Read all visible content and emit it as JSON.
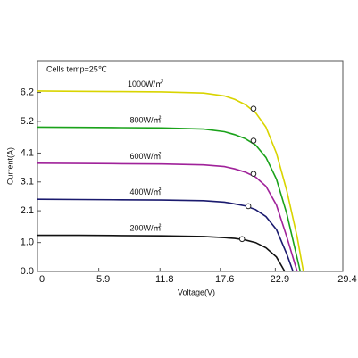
{
  "chart_data": {
    "type": "line",
    "annotation": "Cells temp=25℃",
    "x_label": "Voltage(V)",
    "y_label": "Current(A)",
    "xlim": [
      0,
      29.4
    ],
    "ylim": [
      0,
      7.3
    ],
    "xticks": [
      0,
      5.9,
      11.8,
      17.6,
      22.9,
      29.4
    ],
    "yticks": [
      {
        "value": 0,
        "label": "0.0"
      },
      {
        "value": 1,
        "label": "1.0"
      },
      2.1,
      3.1,
      4.1,
      5.2,
      6.2
    ],
    "series": [
      {
        "name": "1000W/㎡",
        "color": "#d9d400",
        "x": [
          0,
          4,
          8,
          12,
          16,
          18,
          19,
          20,
          21,
          22,
          23,
          24,
          25,
          25.6
        ],
        "values": [
          6.25,
          6.24,
          6.23,
          6.22,
          6.18,
          6.08,
          5.96,
          5.78,
          5.5,
          5.0,
          4.1,
          2.8,
          1.2,
          0
        ],
        "mpp_x": 20.8,
        "mpp": 5.64
      },
      {
        "name": "800W/㎡",
        "color": "#1aa21a",
        "x": [
          0,
          4,
          8,
          12,
          16,
          18,
          19,
          20,
          21,
          22,
          23,
          24,
          25.3
        ],
        "values": [
          5.0,
          4.99,
          4.98,
          4.97,
          4.93,
          4.84,
          4.74,
          4.6,
          4.38,
          3.95,
          3.2,
          2.0,
          0
        ],
        "mpp_x": 20.8,
        "mpp": 4.53
      },
      {
        "name": "600W/㎡",
        "color": "#a0229a",
        "x": [
          0,
          4,
          8,
          12,
          16,
          18,
          19,
          20,
          21,
          22,
          23,
          24,
          25.0
        ],
        "values": [
          3.75,
          3.74,
          3.73,
          3.72,
          3.69,
          3.63,
          3.55,
          3.44,
          3.27,
          2.95,
          2.3,
          1.2,
          0
        ],
        "mpp_x": 20.8,
        "mpp": 3.38
      },
      {
        "name": "400W/㎡",
        "color": "#1a1a6e",
        "x": [
          0,
          4,
          8,
          12,
          16,
          18,
          19,
          20,
          21,
          22,
          23,
          24,
          24.6
        ],
        "values": [
          2.5,
          2.49,
          2.48,
          2.47,
          2.45,
          2.4,
          2.34,
          2.27,
          2.14,
          1.9,
          1.45,
          0.6,
          0
        ],
        "mpp_x": 20.3,
        "mpp": 2.26
      },
      {
        "name": "200W/㎡",
        "color": "#111111",
        "x": [
          0,
          4,
          8,
          12,
          16,
          18,
          19,
          20,
          21,
          22,
          23,
          23.8
        ],
        "values": [
          1.25,
          1.25,
          1.24,
          1.23,
          1.21,
          1.17,
          1.14,
          1.09,
          1.0,
          0.82,
          0.5,
          0
        ],
        "mpp_x": 19.7,
        "mpp": 1.12
      }
    ]
  }
}
